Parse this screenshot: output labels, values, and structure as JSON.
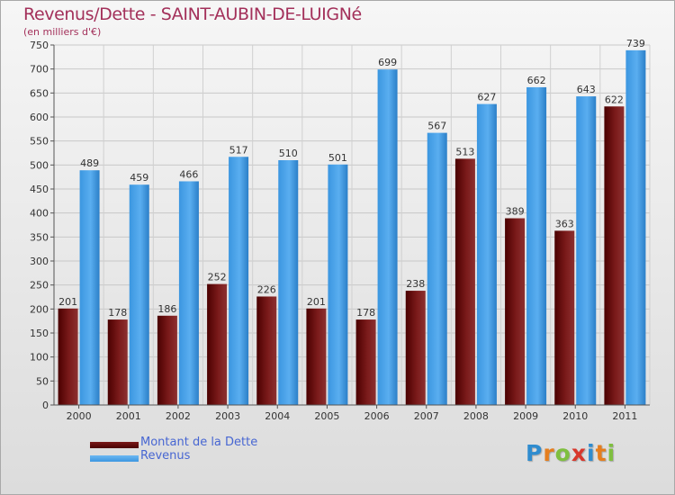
{
  "header": {
    "title": "Revenus/Dette - SAINT-AUBIN-DE-LUIGNé",
    "subtitle": "(en milliers d'€)"
  },
  "legend": {
    "items": [
      {
        "label": "Montant de la Dette",
        "color": "#6b0f0f"
      },
      {
        "label": "Revenus",
        "color": "#4fa3e6"
      }
    ]
  },
  "logo": {
    "text": "Proxiti",
    "letters": [
      {
        "ch": "P",
        "color": "#2f8ccf"
      },
      {
        "ch": "r",
        "color": "#e57e1e"
      },
      {
        "ch": "o",
        "color": "#7fbf3f"
      },
      {
        "ch": "x",
        "color": "#d8372c"
      },
      {
        "ch": "i",
        "color": "#2f8ccf"
      },
      {
        "ch": "t",
        "color": "#e57e1e"
      },
      {
        "ch": "i",
        "color": "#7fbf3f"
      }
    ]
  },
  "chart_data": {
    "type": "bar",
    "title": "Revenus/Dette - SAINT-AUBIN-DE-LUIGNé",
    "subtitle": "(en milliers d'€)",
    "xlabel": "",
    "ylabel": "(en milliers d'€)",
    "ylim": [
      0,
      750
    ],
    "yticks": [
      0,
      50,
      100,
      150,
      200,
      250,
      300,
      350,
      400,
      450,
      500,
      550,
      600,
      650,
      700,
      750
    ],
    "grid": true,
    "legend_position": "bottom-left",
    "categories": [
      "2000",
      "2001",
      "2002",
      "2003",
      "2004",
      "2005",
      "2006",
      "2007",
      "2008",
      "2009",
      "2010",
      "2011"
    ],
    "series": [
      {
        "name": "Montant de la Dette",
        "color": "#6b0f0f",
        "values": [
          201,
          178,
          186,
          252,
          226,
          201,
          178,
          238,
          513,
          389,
          363,
          622
        ]
      },
      {
        "name": "Revenus",
        "color": "#4fa3e6",
        "values": [
          489,
          459,
          466,
          517,
          510,
          501,
          699,
          567,
          627,
          662,
          643,
          739
        ]
      }
    ]
  }
}
